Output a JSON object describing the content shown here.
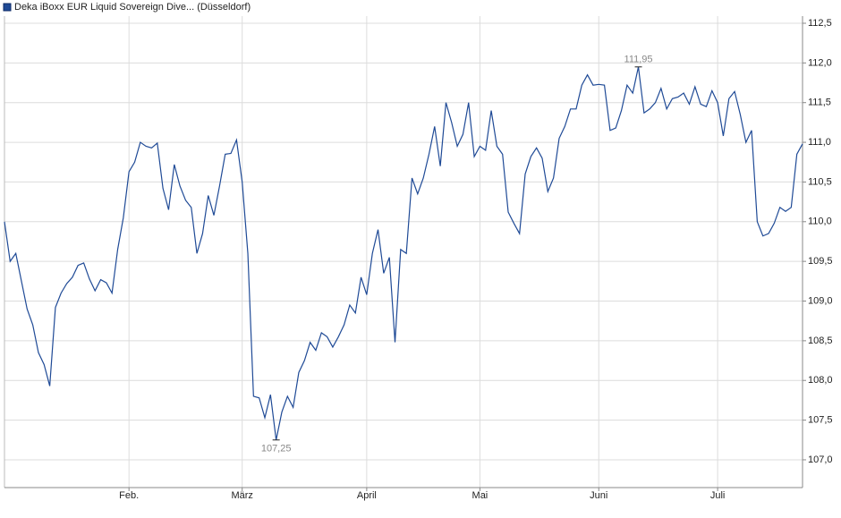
{
  "chart_data": {
    "type": "line",
    "categories": [
      null,
      null,
      null,
      null,
      null,
      null,
      null,
      null,
      null,
      null,
      null,
      null,
      null,
      null,
      null,
      null,
      null,
      null,
      null,
      null,
      null,
      null,
      "Feb.",
      null,
      null,
      null,
      null,
      null,
      null,
      null,
      null,
      null,
      null,
      null,
      null,
      null,
      null,
      null,
      null,
      null,
      null,
      null,
      "März",
      null,
      null,
      null,
      null,
      null,
      null,
      null,
      null,
      null,
      null,
      null,
      null,
      null,
      null,
      null,
      null,
      null,
      null,
      null,
      null,
      null,
      "April",
      null,
      null,
      null,
      null,
      null,
      null,
      null,
      null,
      null,
      null,
      null,
      null,
      null,
      null,
      null,
      null,
      null,
      null,
      null,
      "Mai",
      null,
      null,
      null,
      null,
      null,
      null,
      null,
      null,
      null,
      null,
      null,
      null,
      null,
      null,
      null,
      null,
      null,
      null,
      null,
      null,
      "Juni",
      null,
      null,
      null,
      null,
      null,
      null,
      null,
      null,
      null,
      null,
      null,
      null,
      null,
      null,
      null,
      null,
      null,
      null,
      null,
      null,
      "Juli",
      null,
      null,
      null,
      null,
      null,
      null,
      null,
      null,
      null,
      null,
      null,
      null,
      null,
      null,
      null
    ],
    "series": [
      {
        "name": "Deka iBoxx EUR Liquid Sovereign Dive... (Düsseldorf)",
        "color": "#1f4a96",
        "values": [
          110.0,
          109.5,
          109.6,
          109.25,
          108.9,
          108.7,
          108.35,
          108.2,
          107.93,
          108.92,
          109.1,
          109.22,
          109.3,
          109.45,
          109.48,
          109.28,
          109.13,
          109.27,
          109.23,
          109.1,
          109.65,
          110.05,
          110.63,
          110.75,
          111.0,
          110.95,
          110.93,
          110.99,
          110.42,
          110.15,
          110.72,
          110.45,
          110.27,
          110.18,
          109.6,
          109.85,
          110.33,
          110.08,
          110.45,
          110.85,
          110.86,
          111.03,
          110.5,
          109.6,
          107.8,
          107.78,
          107.53,
          107.82,
          107.25,
          107.6,
          107.8,
          107.66,
          108.1,
          108.25,
          108.48,
          108.38,
          108.6,
          108.55,
          108.42,
          108.55,
          108.7,
          108.95,
          108.85,
          109.3,
          109.08,
          109.6,
          109.9,
          109.35,
          109.55,
          108.48,
          109.65,
          109.6,
          110.55,
          110.35,
          110.55,
          110.85,
          111.2,
          110.7,
          111.5,
          111.25,
          110.95,
          111.1,
          111.5,
          110.82,
          110.95,
          110.9,
          111.4,
          110.95,
          110.85,
          110.12,
          109.98,
          109.85,
          110.6,
          110.82,
          110.93,
          110.8,
          110.38,
          110.55,
          111.05,
          111.2,
          111.42,
          111.42,
          111.72,
          111.85,
          111.72,
          111.73,
          111.72,
          111.15,
          111.18,
          111.4,
          111.72,
          111.62,
          111.95,
          111.37,
          111.42,
          111.5,
          111.68,
          111.42,
          111.55,
          111.57,
          111.62,
          111.48,
          111.7,
          111.48,
          111.45,
          111.65,
          111.5,
          111.08,
          111.55,
          111.64,
          111.35,
          111.0,
          111.15,
          110.0,
          109.82,
          109.85,
          109.98,
          110.18,
          110.13,
          110.18,
          110.85,
          110.98
        ],
        "value_labels": [
          null,
          null,
          null,
          null,
          null,
          null,
          null,
          null,
          null,
          null,
          null,
          null,
          null,
          null,
          null,
          null,
          null,
          null,
          null,
          null,
          null,
          null,
          null,
          null,
          null,
          null,
          null,
          null,
          null,
          null,
          null,
          null,
          null,
          null,
          null,
          null,
          null,
          null,
          null,
          null,
          null,
          null,
          null,
          null,
          null,
          null,
          null,
          null,
          "107,25",
          null,
          null,
          null,
          null,
          null,
          null,
          null,
          null,
          null,
          null,
          null,
          null,
          null,
          null,
          null,
          null,
          null,
          null,
          null,
          null,
          null,
          null,
          null,
          null,
          null,
          null,
          null,
          null,
          null,
          null,
          null,
          null,
          null,
          null,
          null,
          null,
          null,
          null,
          null,
          null,
          null,
          null,
          null,
          null,
          null,
          null,
          null,
          null,
          null,
          null,
          null,
          null,
          null,
          null,
          null,
          null,
          null,
          null,
          null,
          null,
          null,
          null,
          null,
          "111,95",
          null,
          null,
          null,
          null,
          null,
          null,
          null,
          null,
          null,
          null,
          null,
          null,
          null,
          null,
          null,
          null,
          null,
          null,
          null,
          null,
          null,
          null,
          null,
          null,
          null,
          null,
          null,
          null,
          null
        ]
      }
    ],
    "ylim": [
      106.65,
      112.59
    ],
    "yticks": [
      {
        "value": 107.0,
        "label": "107,0"
      },
      {
        "value": 107.5,
        "label": "107,5"
      },
      {
        "value": 108.0,
        "label": "108,0"
      },
      {
        "value": 108.5,
        "label": "108,5"
      },
      {
        "value": 109.0,
        "label": "109,0"
      },
      {
        "value": 109.5,
        "label": "109,5"
      },
      {
        "value": 110.0,
        "label": "110,0"
      },
      {
        "value": 110.5,
        "label": "110,5"
      },
      {
        "value": 111.0,
        "label": "111,0"
      },
      {
        "value": 111.5,
        "label": "111,5"
      },
      {
        "value": 112.0,
        "label": "112,0"
      },
      {
        "value": 112.5,
        "label": "112,5"
      }
    ],
    "grid": true
  }
}
